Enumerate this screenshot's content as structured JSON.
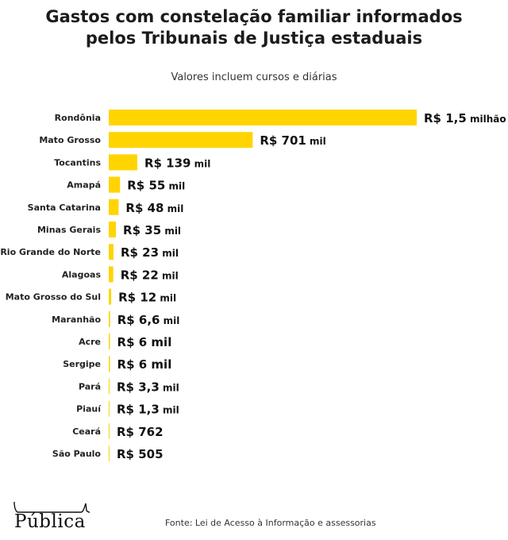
{
  "header": {
    "title_line1": "Gastos com constelação familiar informados",
    "title_line2": "pelos Tribunais de Justiça estaduais",
    "subtitle": "Valores incluem cursos e diárias"
  },
  "chart_data": {
    "type": "bar",
    "orientation": "horizontal",
    "title": "Gastos com constelação familiar informados pelos Tribunais de Justiça estaduais",
    "subtitle": "Valores incluem cursos e diárias",
    "unit": "R$",
    "categories": [
      "Rondônia",
      "Mato Grosso",
      "Tocantins",
      "Amapá",
      "Santa Catarina",
      "Minas Gerais",
      "Rio Grande do Norte",
      "Alagoas",
      "Mato Grosso do Sul",
      "Maranhão",
      "Acre",
      "Sergipe",
      "Pará",
      "Piauí",
      "Ceará",
      "São Paulo"
    ],
    "values": [
      1500000,
      701000,
      139000,
      55000,
      48000,
      35000,
      23000,
      22000,
      12000,
      6600,
      6000,
      6000,
      3300,
      1300,
      762,
      505
    ],
    "labels": [
      {
        "prefix": "R$ ",
        "number": "1,5",
        "suffix": " milhão"
      },
      {
        "prefix": "R$ ",
        "number": "701",
        "suffix": " mil"
      },
      {
        "prefix": "R$ ",
        "number": "139",
        "suffix": " mil"
      },
      {
        "prefix": "R$ ",
        "number": "55",
        "suffix": " mil"
      },
      {
        "prefix": "R$ ",
        "number": "48",
        "suffix": " mil"
      },
      {
        "prefix": "R$ ",
        "number": "35",
        "suffix": " mil"
      },
      {
        "prefix": "R$ ",
        "number": "23",
        "suffix": " mil"
      },
      {
        "prefix": "R$ ",
        "number": "22",
        "suffix": " mil"
      },
      {
        "prefix": "R$ ",
        "number": "12",
        "suffix": " mil"
      },
      {
        "prefix": "R$ ",
        "number": "6,6",
        "suffix": " mil"
      },
      {
        "prefix": "R$ ",
        "number": "6 mil",
        "suffix": ""
      },
      {
        "prefix": "R$ ",
        "number": "6 mil",
        "suffix": ""
      },
      {
        "prefix": "R$ ",
        "number": "3,3",
        "suffix": " mil"
      },
      {
        "prefix": "R$ ",
        "number": "1,3",
        "suffix": " mil"
      },
      {
        "prefix": "R$ ",
        "number": "762",
        "suffix": ""
      },
      {
        "prefix": "R$ ",
        "number": "505",
        "suffix": ""
      }
    ],
    "bar_color": "#FFD400",
    "grid": false,
    "legend": "none"
  },
  "footer": {
    "logo_text": "Pública",
    "source": "Fonte: Lei de Acesso à Informação e assessorias"
  }
}
